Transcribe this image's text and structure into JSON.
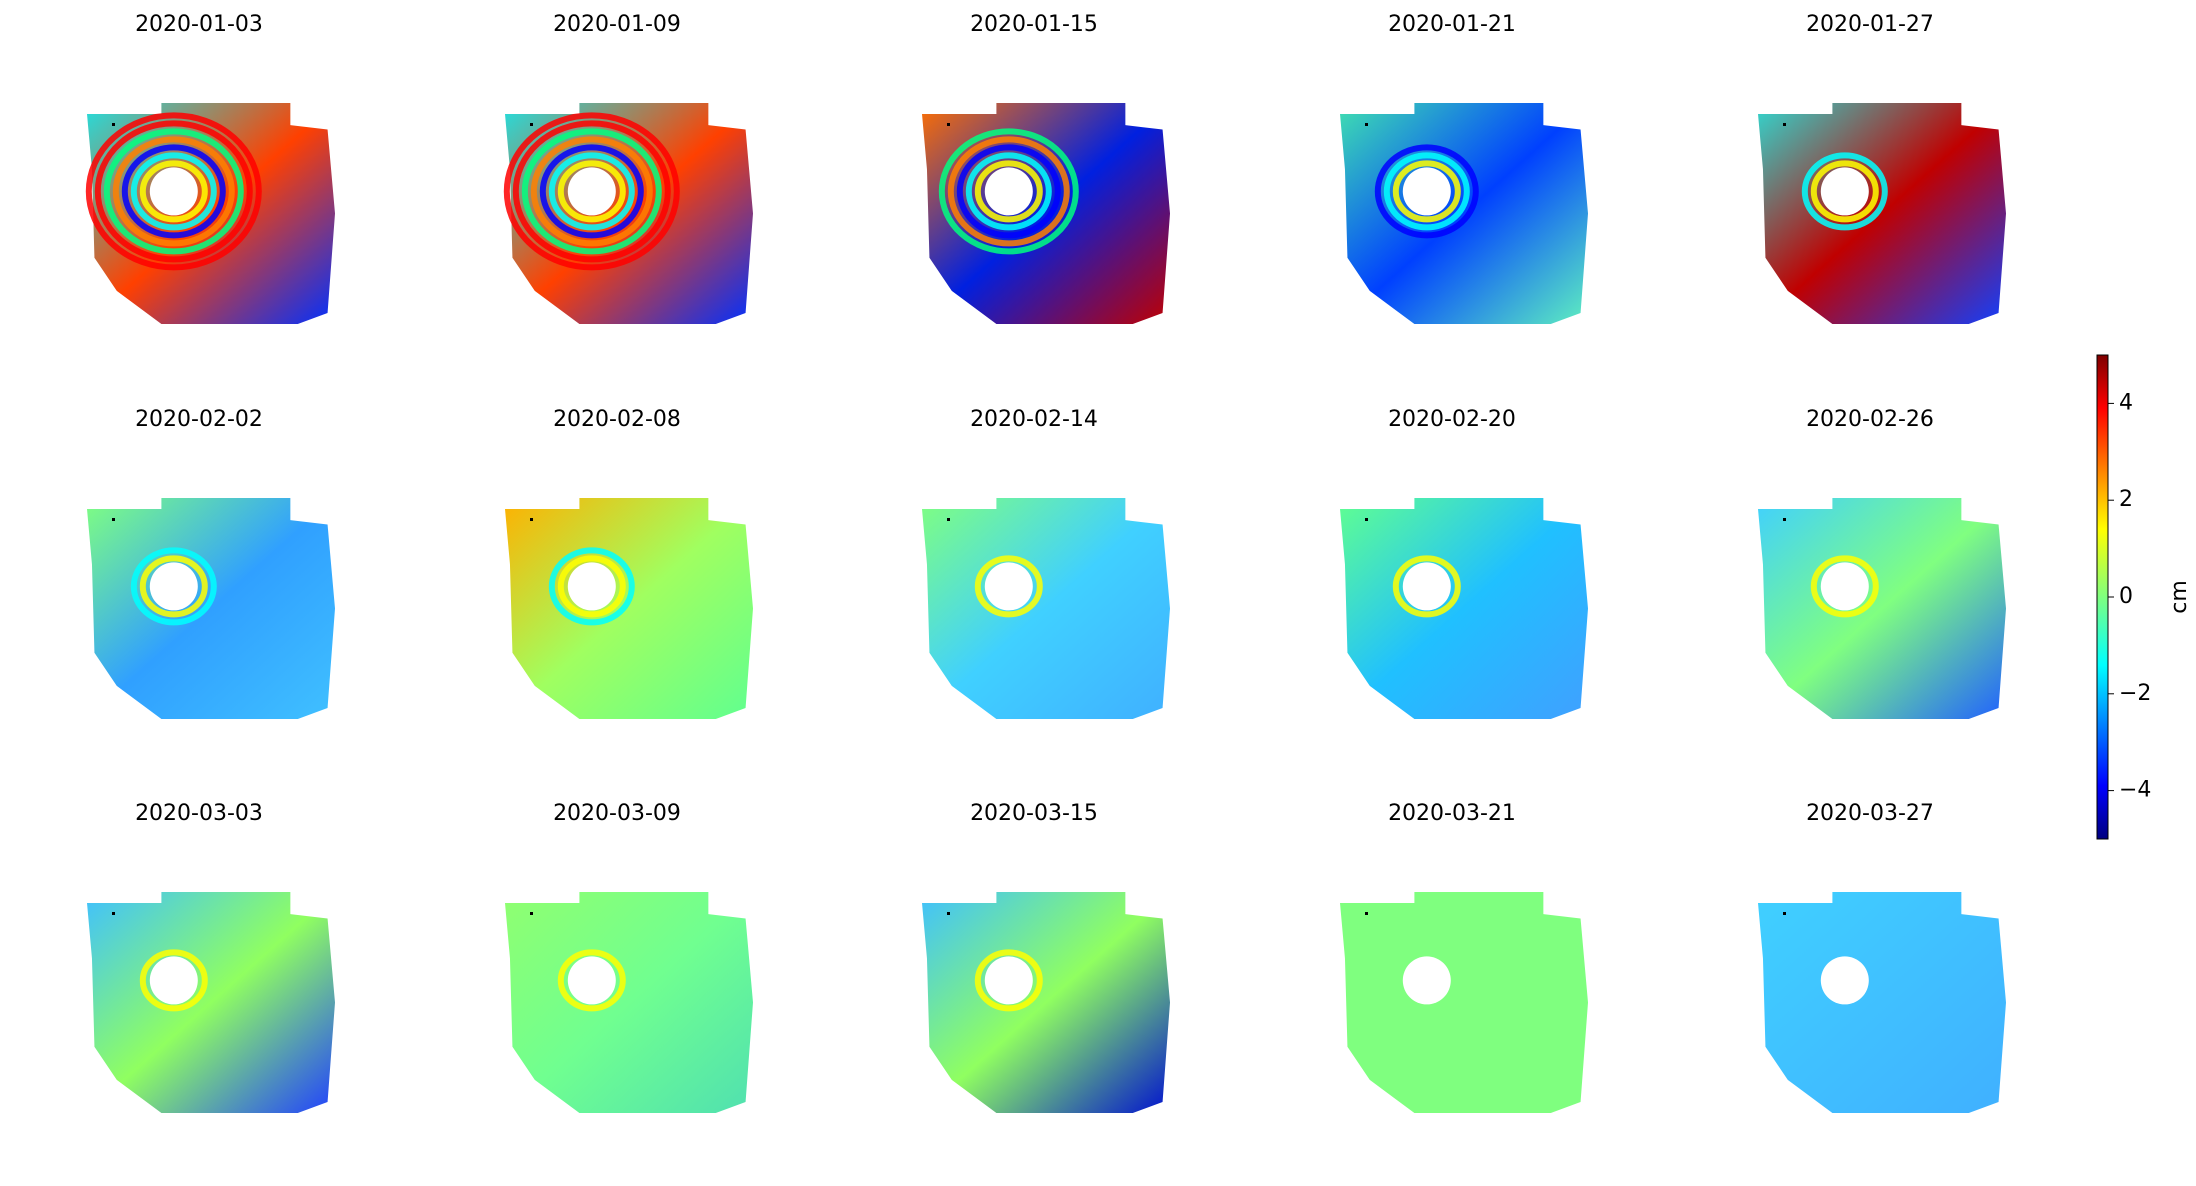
{
  "chart_data": {
    "type": "image-grid",
    "panel_titles": [
      "2020-01-03",
      "2020-01-09",
      "2020-01-15",
      "2020-01-21",
      "2020-01-27",
      "2020-02-02",
      "2020-02-08",
      "2020-02-14",
      "2020-02-20",
      "2020-02-26",
      "2020-03-03",
      "2020-03-09",
      "2020-03-15",
      "2020-03-21",
      "2020-03-27"
    ],
    "colormap": "jet",
    "ylabel": "cm",
    "ylim": [
      -5,
      5
    ],
    "yticks": [
      {
        "value": -4,
        "label": "−4"
      },
      {
        "value": -2,
        "label": "−2"
      },
      0,
      2,
      4
    ]
  }
}
